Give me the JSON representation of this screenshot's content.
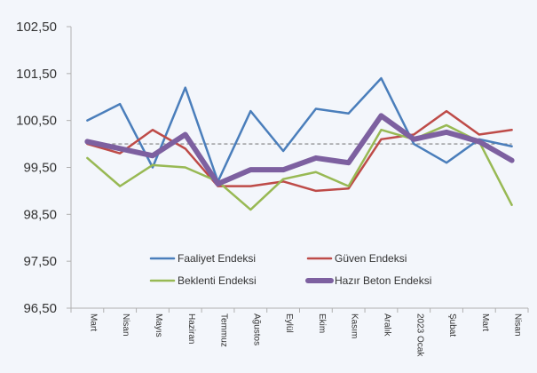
{
  "chart_data": {
    "type": "line",
    "categories": [
      "Mart",
      "Nisan",
      "Mayıs",
      "Haziran",
      "Temmuz",
      "Ağustos",
      "Eylül",
      "Ekim",
      "Kasım",
      "Aralık",
      "2023 Ocak",
      "Şubat",
      "Mart",
      "Nisan"
    ],
    "ylim": [
      96.5,
      102.5
    ],
    "yticks": [
      "96,50",
      "97,50",
      "98,50",
      "99,50",
      "100,50",
      "101,50",
      "102,50"
    ],
    "reference_line": 100,
    "grid": false,
    "legend_position": "bottom-center",
    "series": [
      {
        "name": "Faaliyet Endeksi",
        "color": "#4a7ebb",
        "values": [
          100.5,
          100.85,
          99.5,
          101.2,
          99.2,
          100.7,
          99.85,
          100.75,
          100.65,
          101.4,
          100.0,
          99.6,
          100.1,
          99.95
        ]
      },
      {
        "name": "Güven Endeksi",
        "color": "#be4b48",
        "values": [
          100.0,
          99.8,
          100.3,
          99.9,
          99.1,
          99.1,
          99.2,
          99.0,
          99.05,
          100.1,
          100.2,
          100.7,
          100.2,
          100.3
        ]
      },
      {
        "name": "Beklenti Endeksi",
        "color": "#98b954",
        "values": [
          99.7,
          99.1,
          99.55,
          99.5,
          99.2,
          98.6,
          99.25,
          99.4,
          99.1,
          100.3,
          100.1,
          100.4,
          100.05,
          98.7
        ]
      },
      {
        "name": "Hazır Beton Endeksi",
        "color": "#7d60a0",
        "values": [
          100.05,
          99.9,
          99.75,
          100.2,
          99.15,
          99.45,
          99.45,
          99.7,
          99.6,
          100.6,
          100.1,
          100.25,
          100.05,
          99.65
        ]
      }
    ]
  }
}
